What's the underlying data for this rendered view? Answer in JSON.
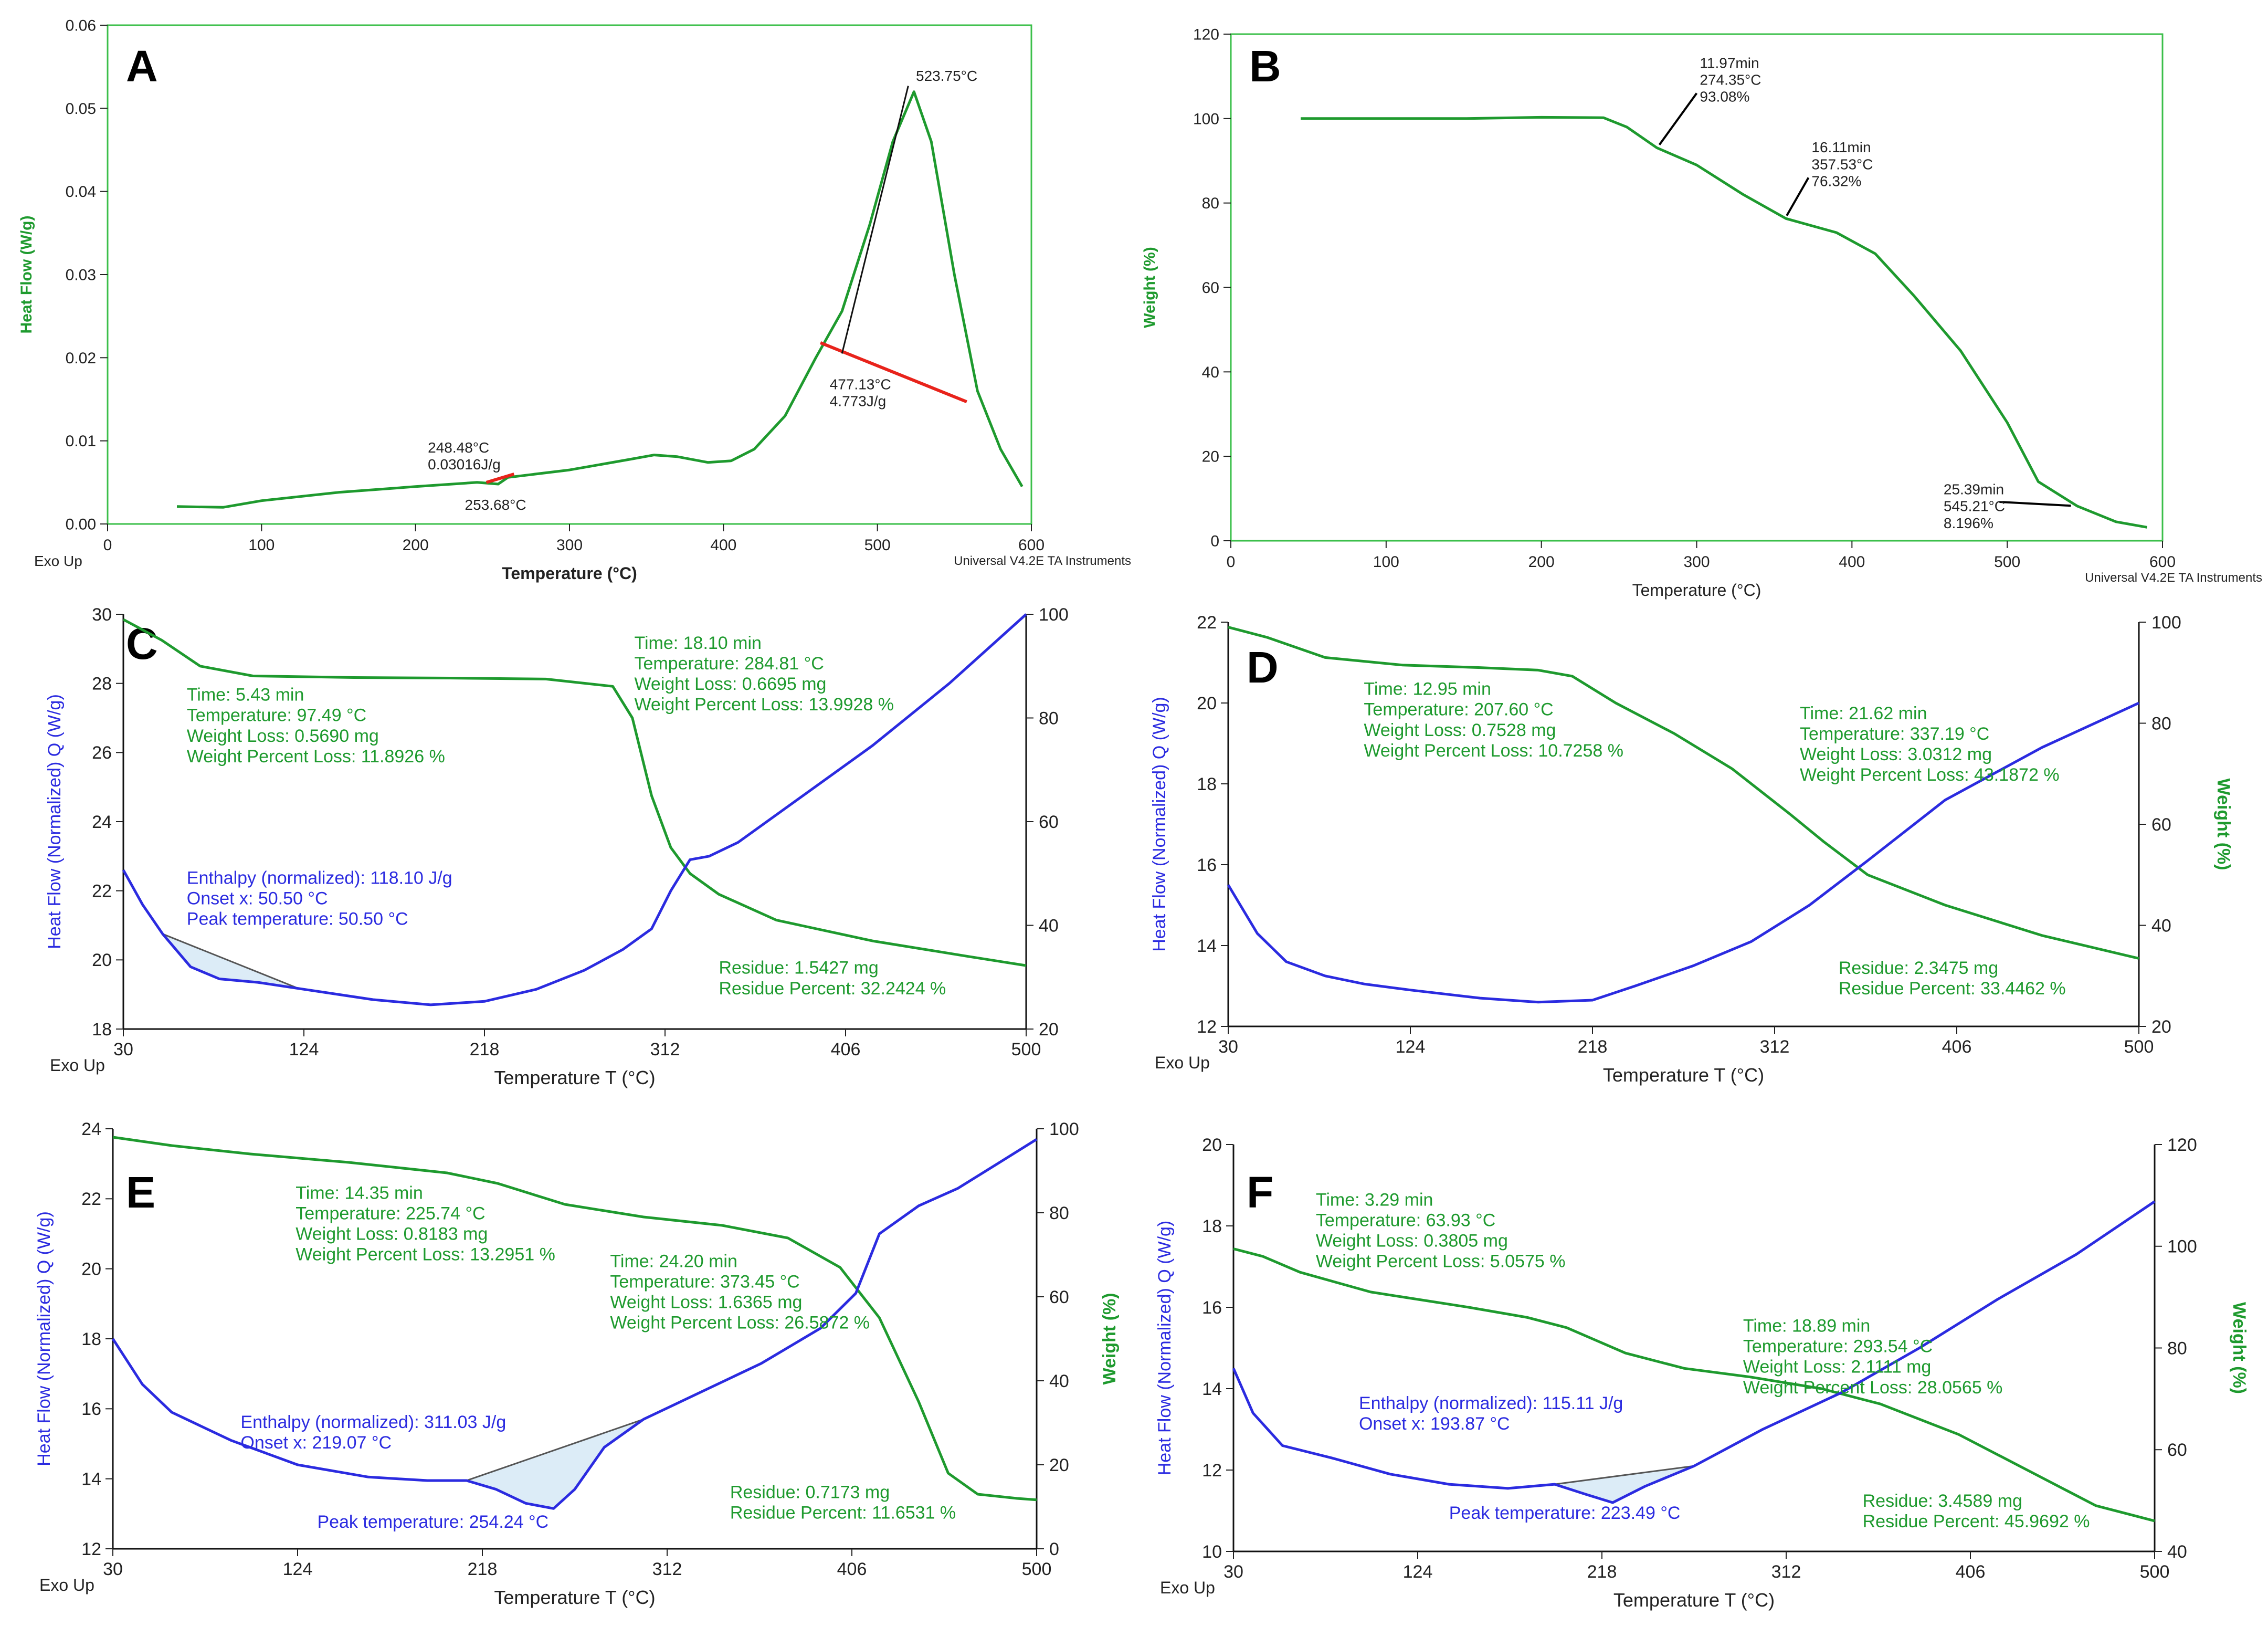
{
  "colors": {
    "green": "#1e9a2e",
    "blue": "#2b2be0",
    "red": "#e8231b",
    "black": "#111111",
    "gray": "#555555",
    "fill": "#dcecf7",
    "greenAxis": "#3bbf4a"
  },
  "chart_data": [
    {
      "id": "A",
      "type": "line",
      "panel_label": "A",
      "xlabel": "Temperature (°C)",
      "ylabel": "Heat Flow (W/g)",
      "xlim": [
        0,
        600
      ],
      "ylim": [
        0,
        0.06
      ],
      "xticks": [
        "0",
        "100",
        "200",
        "300",
        "400",
        "500",
        "600"
      ],
      "yticks": [
        "0.00",
        "0.01",
        "0.02",
        "0.03",
        "0.04",
        "0.05",
        "0.06"
      ],
      "footer_left": "Exo Up",
      "footer_right": "Universal V4.2E TA Instruments",
      "series": [
        {
          "name": "Heat Flow",
          "color": "green",
          "x": [
            45,
            75,
            100,
            150,
            200,
            240,
            253.68,
            260,
            300,
            340,
            355,
            370,
            390,
            405,
            420,
            440,
            460,
            477,
            495,
            510,
            523.75,
            535,
            550,
            565,
            580,
            594
          ],
          "y": [
            0.0021,
            0.002,
            0.0028,
            0.0038,
            0.0045,
            0.005,
            0.0048,
            0.0056,
            0.0065,
            0.0078,
            0.0083,
            0.0081,
            0.0074,
            0.0076,
            0.009,
            0.013,
            0.02,
            0.0256,
            0.036,
            0.046,
            0.052,
            0.046,
            0.03,
            0.016,
            0.009,
            0.0045
          ]
        }
      ],
      "annotations": [
        {
          "text": [
            "523.75°C"
          ],
          "pos": [
            525,
            0.0533
          ]
        },
        {
          "text": [
            "248.48°C",
            "0.03016J/g"
          ],
          "pos": [
            208,
            0.0086
          ]
        },
        {
          "text": [
            "253.68°C"
          ],
          "pos": [
            232,
            0.0017
          ]
        },
        {
          "text": [
            "477.13°C",
            "4.773J/g"
          ],
          "pos": [
            469,
            0.0162
          ]
        }
      ]
    },
    {
      "id": "B",
      "type": "line",
      "panel_label": "B",
      "xlabel": "Temperature (°C)",
      "ylabel": "Weight (%)",
      "xlim": [
        0,
        600
      ],
      "ylim": [
        0,
        120
      ],
      "xticks": [
        "0",
        "100",
        "200",
        "300",
        "400",
        "500",
        "600"
      ],
      "yticks": [
        "0",
        "20",
        "40",
        "60",
        "80",
        "100",
        "120"
      ],
      "footer_right": "Universal V4.2E TA Instruments",
      "series": [
        {
          "name": "Weight",
          "color": "green",
          "x": [
            45,
            100,
            150,
            200,
            240,
            255,
            274.35,
            300,
            330,
            357.53,
            390,
            415,
            440,
            470,
            500,
            520,
            545.21,
            570,
            590
          ],
          "y": [
            100,
            100,
            100,
            100.3,
            100.2,
            98,
            93.08,
            89,
            82,
            76.32,
            73,
            68,
            58,
            45,
            28,
            14,
            8.196,
            4.5,
            3.2
          ]
        }
      ],
      "annotations": [
        {
          "text": [
            "11.97min",
            "274.35°C",
            "93.08%"
          ],
          "pos": [
            302,
            112
          ]
        },
        {
          "text": [
            "16.11min",
            "357.53°C",
            "76.32%"
          ],
          "pos": [
            374,
            92
          ]
        },
        {
          "text": [
            "25.39min",
            "545.21°C",
            "8.196%"
          ],
          "pos": [
            459,
            11
          ]
        }
      ]
    },
    {
      "id": "C",
      "type": "line",
      "panel_label": "C",
      "xlabel": "Temperature T (°C)",
      "ylabel": "Heat Flow (Normalized) Q (W/g)",
      "footer_left": "Exo Up",
      "xlim": [
        30,
        500
      ],
      "ylim": [
        18,
        30
      ],
      "y2lim": [
        20,
        100
      ],
      "xticks": [
        "30",
        "124",
        "218",
        "312",
        "406",
        "500"
      ],
      "yticks": [
        "18",
        "20",
        "22",
        "24",
        "26",
        "28",
        "30"
      ],
      "y2ticks": [
        "20",
        "40",
        "60",
        "80",
        "100"
      ],
      "series": [
        {
          "name": "Weight",
          "axis": "right",
          "color": "green",
          "x": [
            30,
            50,
            70,
            97.49,
            150,
            200,
            250,
            284.81,
            295,
            305,
            315,
            325,
            340,
            370,
            420,
            470,
            500
          ],
          "y": [
            99,
            95,
            90,
            88.1,
            87.8,
            87.7,
            87.5,
            86.1,
            80,
            65,
            55,
            50,
            46,
            41,
            37,
            34,
            32.24
          ]
        },
        {
          "name": "Heat Flow",
          "axis": "left",
          "color": "blue",
          "x": [
            30,
            40,
            50.5,
            65,
            80,
            100,
            124,
            160,
            190,
            218,
            245,
            270,
            290,
            305,
            315,
            325,
            335,
            350,
            380,
            420,
            460,
            500
          ],
          "y": [
            22.6,
            21.6,
            20.75,
            19.8,
            19.45,
            19.35,
            19.15,
            18.85,
            18.7,
            18.8,
            19.15,
            19.7,
            20.3,
            20.9,
            22.0,
            22.9,
            23.0,
            23.4,
            24.6,
            26.2,
            28.0,
            30.0
          ]
        }
      ],
      "baseline": {
        "x": [
          50.5,
          120
        ],
        "y": [
          20.75,
          19.2
        ]
      },
      "annotations": [
        {
          "color": "green",
          "text": [
            "Time: 5.43 min",
            "Temperature: 97.49 °C",
            "Weight Loss: 0.5690 mg",
            "Weight Percent Loss: 11.8926 %"
          ],
          "pos": [
            63,
            27.5
          ]
        },
        {
          "color": "green",
          "text": [
            "Time: 18.10 min",
            "Temperature: 284.81 °C",
            "Weight Loss: 0.6695 mg",
            "Weight Percent Loss: 13.9928 %"
          ],
          "pos": [
            296,
            29
          ]
        },
        {
          "color": "blue",
          "text": [
            "Enthalpy (normalized): 118.10 J/g",
            "Onset x: 50.50 °C",
            "Peak temperature: 50.50 °C"
          ],
          "pos": [
            63,
            22.2
          ]
        },
        {
          "color": "green",
          "text": [
            "Residue: 1.5427 mg",
            "Residue Percent: 32.2424 %"
          ],
          "pos": [
            340,
            19.6
          ]
        }
      ]
    },
    {
      "id": "D",
      "type": "line",
      "panel_label": "D",
      "xlabel": "Temperature T (°C)",
      "ylabel": "Heat Flow (Normalized) Q (W/g)",
      "y2label": "Weight (%)",
      "footer_left": "Exo Up",
      "xlim": [
        30,
        500
      ],
      "ylim": [
        12,
        22
      ],
      "y2lim": [
        20,
        100
      ],
      "xticks": [
        "30",
        "124",
        "218",
        "312",
        "406",
        "500"
      ],
      "yticks": [
        "12",
        "14",
        "16",
        "18",
        "20",
        "22"
      ],
      "y2ticks": [
        "20",
        "40",
        "60",
        "80",
        "100"
      ],
      "series": [
        {
          "name": "Weight",
          "axis": "right",
          "color": "green",
          "x": [
            30,
            50,
            80,
            120,
            160,
            190,
            207.6,
            230,
            260,
            290,
            320,
            337.19,
            360,
            400,
            450,
            500
          ],
          "y": [
            99,
            97,
            93,
            91.5,
            91,
            90.5,
            89.3,
            84,
            78,
            71,
            62,
            56.6,
            50,
            44,
            38,
            33.45
          ]
        },
        {
          "name": "Heat Flow",
          "axis": "left",
          "color": "blue",
          "x": [
            30,
            45,
            60,
            80,
            100,
            124,
            160,
            190,
            218,
            240,
            270,
            300,
            330,
            360,
            400,
            450,
            500
          ],
          "y": [
            15.5,
            14.3,
            13.6,
            13.25,
            13.05,
            12.9,
            12.7,
            12.6,
            12.65,
            13.0,
            13.5,
            14.1,
            15.0,
            16.1,
            17.6,
            18.9,
            20.0
          ]
        }
      ],
      "annotations": [
        {
          "color": "green",
          "text": [
            "Time: 12.95 min",
            "Temperature: 207.60 °C",
            "Weight Loss: 0.7528 mg",
            "Weight Percent Loss: 10.7258 %"
          ],
          "pos": [
            100,
            20.2
          ]
        },
        {
          "color": "green",
          "text": [
            "Time: 21.62 min",
            "Temperature: 337.19 °C",
            "Weight Loss: 3.0312 mg",
            "Weight Percent Loss: 43.1872 %"
          ],
          "pos": [
            325,
            19.6
          ]
        },
        {
          "color": "green",
          "text": [
            "Residue: 2.3475 mg",
            "Residue Percent: 33.4462 %"
          ],
          "pos": [
            345,
            13.3
          ]
        }
      ]
    },
    {
      "id": "E",
      "type": "line",
      "panel_label": "E",
      "xlabel": "Temperature T (°C)",
      "ylabel": "Heat Flow (Normalized) Q (W/g)",
      "y2label": "Weight (%)",
      "footer_left": "Exo Up",
      "xlim": [
        30,
        500
      ],
      "ylim": [
        12,
        24
      ],
      "y2lim": [
        0,
        100
      ],
      "xticks": [
        "30",
        "124",
        "218",
        "312",
        "406",
        "500"
      ],
      "yticks": [
        "12",
        "14",
        "16",
        "18",
        "20",
        "22",
        "24"
      ],
      "y2ticks": [
        "0",
        "20",
        "40",
        "60",
        "80",
        "100"
      ],
      "series": [
        {
          "name": "Weight",
          "axis": "right",
          "color": "green",
          "x": [
            30,
            60,
            100,
            150,
            200,
            225.74,
            260,
            300,
            340,
            373.45,
            400,
            420,
            440,
            455,
            470,
            490,
            500
          ],
          "y": [
            98,
            96,
            94,
            92,
            89.5,
            87,
            82,
            79,
            77,
            74,
            67,
            55,
            35,
            18,
            13,
            12,
            11.65
          ]
        },
        {
          "name": "Heat Flow",
          "axis": "left",
          "color": "blue",
          "x": [
            30,
            45,
            60,
            90,
            124,
            160,
            190,
            210,
            225,
            240,
            254.24,
            265,
            280,
            300,
            330,
            360,
            390,
            408,
            420,
            440,
            460,
            480,
            500
          ],
          "y": [
            18,
            16.7,
            15.9,
            15.1,
            14.4,
            14.05,
            13.95,
            13.95,
            13.7,
            13.3,
            13.15,
            13.7,
            14.9,
            15.7,
            16.5,
            17.3,
            18.3,
            19.3,
            21,
            21.8,
            22.3,
            23,
            23.7
          ]
        }
      ],
      "baseline": {
        "x": [
          210,
          300
        ],
        "y": [
          13.95,
          15.7
        ]
      },
      "annotations": [
        {
          "color": "green",
          "text": [
            "Time: 14.35 min",
            "Temperature: 225.74 °C",
            "Weight Loss: 0.8183 mg",
            "Weight Percent Loss: 13.2951 %"
          ],
          "pos": [
            123,
            22.0
          ]
        },
        {
          "color": "green",
          "text": [
            "Time: 24.20 min",
            "Temperature: 373.45 °C",
            "Weight Loss: 1.6365 mg",
            "Weight Percent Loss: 26.5872 %"
          ],
          "pos": [
            283,
            20.05
          ]
        },
        {
          "color": "blue",
          "text": [
            "Enthalpy (normalized): 311.03 J/g",
            "Onset x: 219.07 °C"
          ],
          "pos": [
            95,
            15.45
          ]
        },
        {
          "color": "blue",
          "text": [
            "Peak temperature: 254.24 °C"
          ],
          "pos": [
            134,
            12.6
          ]
        },
        {
          "color": "green",
          "text": [
            "Residue: 0.7173 mg",
            "Residue Percent: 11.6531 %"
          ],
          "pos": [
            344,
            13.45
          ]
        }
      ]
    },
    {
      "id": "F",
      "type": "line",
      "panel_label": "F",
      "xlabel": "Temperature T (°C)",
      "ylabel": "Heat Flow (Normalized) Q (W/g)",
      "y2label": "Weight (%)",
      "footer_left": "Exo Up",
      "xlim": [
        30,
        500
      ],
      "ylim": [
        10,
        20
      ],
      "y2lim": [
        40,
        120
      ],
      "xticks": [
        "30",
        "124",
        "218",
        "312",
        "406",
        "500"
      ],
      "yticks": [
        "10",
        "12",
        "14",
        "16",
        "18",
        "20"
      ],
      "y2ticks": [
        "40",
        "60",
        "80",
        "100",
        "120"
      ],
      "series": [
        {
          "name": "Weight",
          "axis": "right",
          "color": "green",
          "x": [
            30,
            45,
            63.93,
            100,
            150,
            180,
            200,
            230,
            260,
            293.54,
            330,
            360,
            400,
            440,
            470,
            500
          ],
          "y": [
            99.5,
            98,
            94.9,
            91,
            88,
            86,
            84,
            79,
            76,
            74.3,
            72,
            69,
            63,
            55,
            49,
            46
          ]
        },
        {
          "name": "Heat Flow",
          "axis": "left",
          "color": "blue",
          "x": [
            30,
            40,
            55,
            80,
            110,
            140,
            170,
            193.87,
            210,
            223.49,
            240,
            265,
            300,
            340,
            380,
            420,
            460,
            500
          ],
          "y": [
            14.5,
            13.4,
            12.6,
            12.3,
            11.9,
            11.65,
            11.55,
            11.65,
            11.4,
            11.2,
            11.6,
            12.1,
            13.0,
            13.9,
            15.0,
            16.2,
            17.3,
            18.6
          ]
        }
      ],
      "baseline": {
        "x": [
          193.87,
          265
        ],
        "y": [
          11.65,
          12.1
        ]
      },
      "annotations": [
        {
          "color": "green",
          "text": [
            "Time: 3.29 min",
            "Temperature: 63.93 °C",
            "Weight Loss: 0.3805 mg",
            "Weight Percent Loss: 5.0575 %"
          ],
          "pos": [
            72,
            18.5
          ]
        },
        {
          "color": "green",
          "text": [
            "Time: 18.89 min",
            "Temperature: 293.54 °C",
            "Weight Loss: 2.1111 mg",
            "Weight Percent Loss: 28.0565 %"
          ],
          "pos": [
            290,
            15.4
          ]
        },
        {
          "color": "blue",
          "text": [
            "Enthalpy (normalized): 115.11 J/g",
            "Onset x: 193.87 °C"
          ],
          "pos": [
            94,
            13.5
          ]
        },
        {
          "color": "blue",
          "text": [
            "Peak temperature: 223.49 °C"
          ],
          "pos": [
            140,
            10.8
          ]
        },
        {
          "color": "green",
          "text": [
            "Residue: 3.4589 mg",
            "Residue Percent: 45.9692 %"
          ],
          "pos": [
            351,
            11.1
          ]
        }
      ]
    }
  ]
}
